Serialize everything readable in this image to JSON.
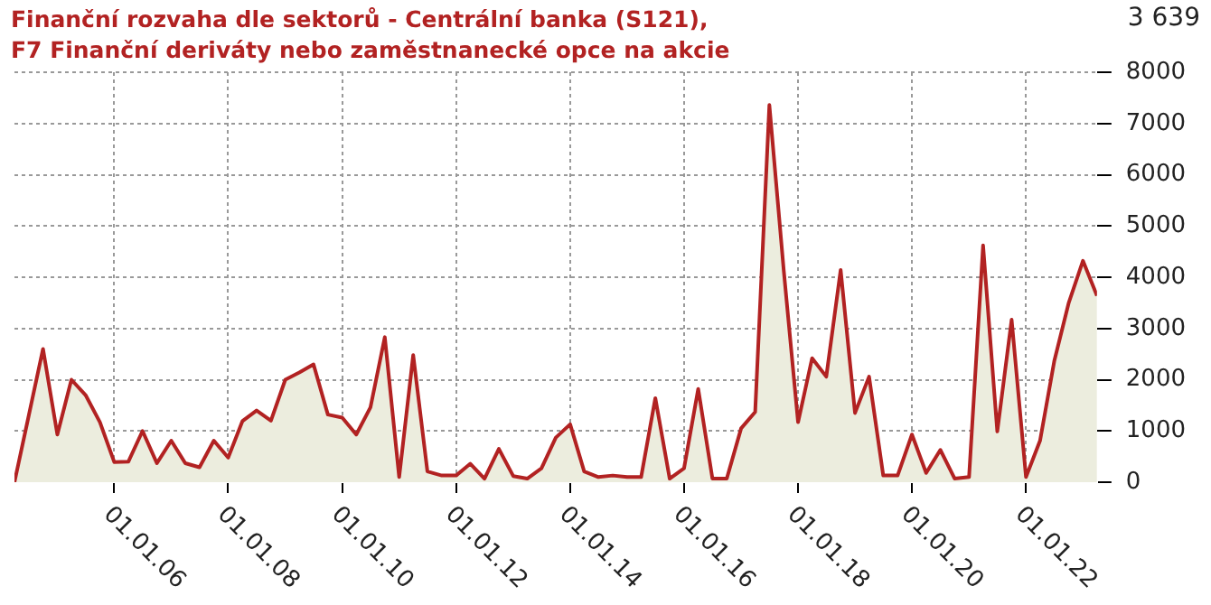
{
  "chart_data": {
    "type": "area",
    "title": "Finanční rozvaha dle sektorů - Centrální banka (S121),\nF7 Finanční deriváty nebo zaměstnanecké opce na akcie",
    "annotations": [
      "3 639"
    ],
    "x": [
      "2004-04",
      "2004-07",
      "2004-10",
      "2005-01",
      "2005-04",
      "2005-07",
      "2005-10",
      "2006-01",
      "2006-04",
      "2006-07",
      "2006-10",
      "2007-01",
      "2007-04",
      "2007-07",
      "2007-10",
      "2008-01",
      "2008-04",
      "2008-07",
      "2008-10",
      "2009-01",
      "2009-04",
      "2009-07",
      "2009-10",
      "2010-01",
      "2010-04",
      "2010-07",
      "2010-10",
      "2011-01",
      "2011-04",
      "2011-07",
      "2011-10",
      "2012-01",
      "2012-04",
      "2012-07",
      "2012-10",
      "2013-01",
      "2013-04",
      "2013-07",
      "2013-10",
      "2014-01",
      "2014-04",
      "2014-07",
      "2014-10",
      "2015-01",
      "2015-04",
      "2015-07",
      "2015-10",
      "2016-01",
      "2016-04",
      "2016-07",
      "2016-10",
      "2017-01",
      "2017-04",
      "2017-07",
      "2017-10",
      "2018-01",
      "2018-04",
      "2018-07",
      "2018-10",
      "2019-01",
      "2019-04",
      "2019-07",
      "2019-10",
      "2020-01",
      "2020-04",
      "2020-07",
      "2020-10",
      "2021-01",
      "2021-04",
      "2021-07",
      "2021-10",
      "2022-01",
      "2022-04",
      "2022-07",
      "2022-10",
      "2023-01",
      "2023-04"
    ],
    "series": [
      {
        "color": "#b22222",
        "values": [
          0,
          1290,
          2600,
          930,
          2000,
          1700,
          1170,
          390,
          400,
          1000,
          370,
          810,
          370,
          290,
          810,
          480,
          1190,
          1400,
          1200,
          2000,
          2140,
          2300,
          1320,
          1260,
          930,
          1460,
          2830,
          100,
          2480,
          210,
          130,
          130,
          360,
          70,
          650,
          120,
          70,
          270,
          870,
          1130,
          210,
          100,
          130,
          100,
          100,
          1640,
          70,
          270,
          1820,
          70,
          70,
          1050,
          1370,
          7360,
          4140,
          1170,
          2420,
          2060,
          4140,
          1350,
          2060,
          130,
          130,
          930,
          180,
          630,
          70,
          100,
          4620,
          990,
          3170,
          100,
          810,
          2360,
          3490,
          4320,
          3639
        ]
      }
    ],
    "xlim": [
      "2004-04",
      "2023-04"
    ],
    "xticks": [
      {
        "value": "2006-01",
        "label": "01.01.06"
      },
      {
        "value": "2008-01",
        "label": "01.01.08"
      },
      {
        "value": "2010-01",
        "label": "01.01.10"
      },
      {
        "value": "2012-01",
        "label": "01.01.12"
      },
      {
        "value": "2014-01",
        "label": "01.01.14"
      },
      {
        "value": "2016-01",
        "label": "01.01.16"
      },
      {
        "value": "2018-01",
        "label": "01.01.18"
      },
      {
        "value": "2020-01",
        "label": "01.01.20"
      },
      {
        "value": "2022-01",
        "label": "01.01.22"
      }
    ],
    "ylim": [
      0,
      8000
    ],
    "yticks": [
      0,
      1000,
      2000,
      3000,
      4000,
      5000,
      6000,
      7000,
      8000
    ],
    "grid": true,
    "legend": false,
    "marker": "none",
    "line_style": "solid"
  }
}
